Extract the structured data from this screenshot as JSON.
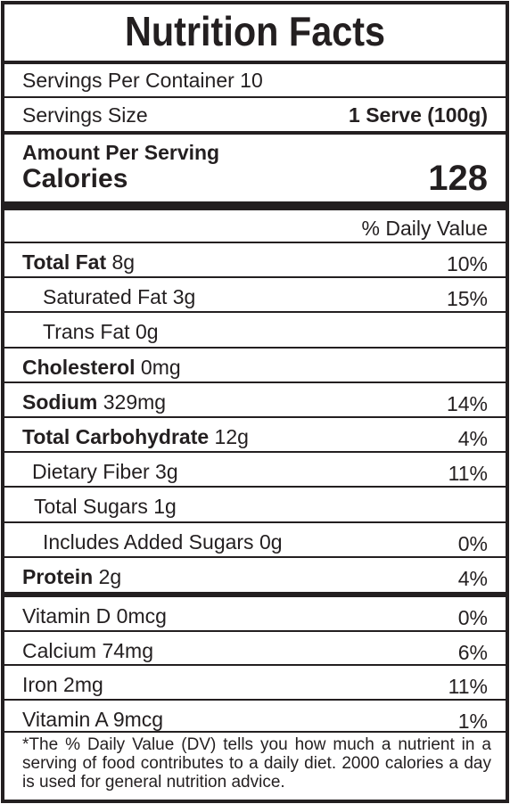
{
  "title": "Nutrition Facts",
  "servings_per_container": "Servings Per Container 10",
  "serving_size": {
    "label": "Servings Size",
    "value": "1 Serve (100g)"
  },
  "amount_per_serving": "Amount Per Serving",
  "calories": {
    "label": "Calories",
    "value": "128"
  },
  "daily_value_header": "% Daily Value",
  "nutrients": [
    {
      "name": "Total Fat",
      "amount": "8g",
      "dv": "10%",
      "bold": true
    },
    {
      "name": "Saturated Fat",
      "amount": "3g",
      "dv": "15%",
      "bold": false
    },
    {
      "name": "Trans Fat",
      "amount": "0g",
      "dv": "",
      "bold": false
    },
    {
      "name": "Cholesterol",
      "amount": "0mg",
      "dv": "",
      "bold": true
    },
    {
      "name": "Sodium",
      "amount": "329mg",
      "dv": "14%",
      "bold": true
    },
    {
      "name": "Total Carbohydrate",
      "amount": "12g",
      "dv": "4%",
      "bold": true
    },
    {
      "name": "Dietary Fiber",
      "amount": "3g",
      "dv": "11%",
      "bold": false
    },
    {
      "name": "Total Sugars",
      "amount": "1g",
      "dv": "",
      "bold": false
    },
    {
      "name": "Includes Added Sugars",
      "amount": "0g",
      "dv": "0%",
      "bold": false
    },
    {
      "name": "Protein",
      "amount": "2g",
      "dv": "4%",
      "bold": true
    }
  ],
  "vitamins": [
    {
      "text": "Vitamin D 0mcg",
      "dv": "0%"
    },
    {
      "text": "Calcium 74mg",
      "dv": "6%"
    },
    {
      "text": "Iron 2mg",
      "dv": "11%"
    },
    {
      "text": "Vitamin A 9mcg",
      "dv": "1%"
    }
  ],
  "footnote": "*The % Daily Value (DV) tells you how much a nutrient in a serving of food contributes to a daily diet. 2000 calories a day is used for general nutrition advice."
}
